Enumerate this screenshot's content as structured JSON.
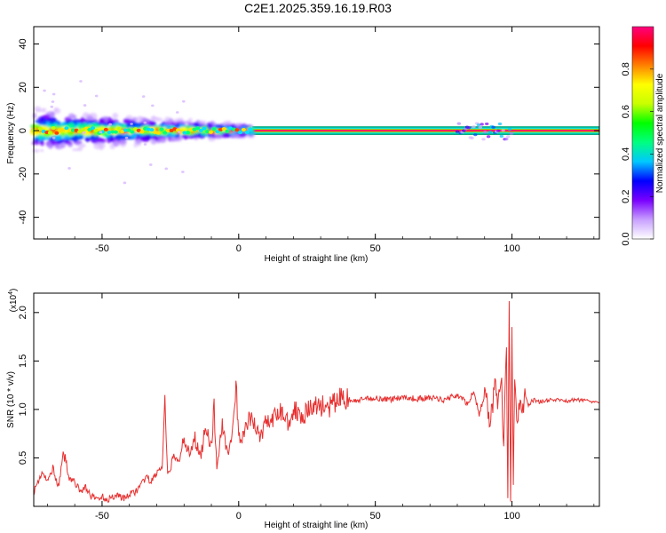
{
  "title": "C2E1.2025.359.16.19.R03",
  "chart_data": [
    {
      "type": "heatmap",
      "panel": "spectrogram",
      "xlabel": "Height of straight line (km)",
      "ylabel": "Frequency (Hz)",
      "xlim": [
        -75,
        132
      ],
      "ylim": [
        -50,
        48
      ],
      "xticks": [
        -50,
        0,
        50,
        100
      ],
      "yticks": [
        -40,
        -20,
        0,
        20,
        40
      ],
      "colorbar": {
        "label": "Normalized spectral amplitude",
        "range": [
          0,
          1
        ],
        "ticks": [
          "0.0",
          "0.2",
          "0.4",
          "0.6",
          "0.8"
        ],
        "tick_values": [
          0,
          0.2,
          0.4,
          0.6,
          0.8
        ],
        "colors": [
          "#ffffff",
          "#c8a0ff",
          "#7a00ff",
          "#0000ff",
          "#00c8ff",
          "#00ff80",
          "#00ff00",
          "#c8ff00",
          "#ffff00",
          "#ff8000",
          "#ff0000",
          "#ff0080"
        ]
      },
      "band": {
        "center_hz": 0,
        "scatter_range_km": [
          -75,
          5
        ],
        "scatter_spread_hz": [
          -12,
          12
        ],
        "stable_range_km": [
          5,
          132
        ],
        "stable_halfwidth_hz": 2,
        "disturbed_range_km": [
          80,
          100
        ]
      }
    },
    {
      "type": "line",
      "panel": "snr",
      "xlabel": "Height of straight line (km)",
      "ylabel": "SNR (10 * v/v)",
      "multiplier": "(x10",
      "multiplier_exp": "4",
      "multiplier_close": ")",
      "xlim": [
        -75,
        132
      ],
      "ylim": [
        0,
        2.2
      ],
      "xticks": [
        -50,
        0,
        50,
        100
      ],
      "yticks": [
        "0.5",
        "1.0",
        "1.5",
        "2.0"
      ],
      "ytick_values": [
        0.5,
        1.0,
        1.5,
        2.0
      ],
      "color": "#e83030",
      "x": [
        -75,
        -72,
        -70,
        -68,
        -66,
        -64,
        -62,
        -60,
        -58,
        -56,
        -54,
        -52,
        -50,
        -48,
        -46,
        -44,
        -42,
        -40,
        -38,
        -36,
        -34,
        -32,
        -30,
        -28,
        -27,
        -26,
        -24,
        -22,
        -20,
        -18,
        -16,
        -14,
        -12,
        -10,
        -9,
        -8,
        -6,
        -4,
        -2,
        -1,
        0,
        2,
        4,
        6,
        8,
        10,
        12,
        15,
        18,
        21,
        24,
        27,
        30,
        33,
        36,
        39,
        42,
        45,
        50,
        55,
        60,
        65,
        70,
        75,
        80,
        84,
        86,
        88,
        90,
        92,
        94,
        95,
        96,
        97,
        98,
        98.5,
        99,
        99.5,
        100,
        100.5,
        101,
        102,
        103,
        104,
        105,
        106,
        108,
        110,
        115,
        120,
        125,
        132
      ],
      "y": [
        0.15,
        0.35,
        0.25,
        0.4,
        0.2,
        0.55,
        0.3,
        0.25,
        0.15,
        0.2,
        0.1,
        0.08,
        0.1,
        0.07,
        0.1,
        0.12,
        0.08,
        0.12,
        0.15,
        0.2,
        0.3,
        0.25,
        0.35,
        0.4,
        1.05,
        0.3,
        0.5,
        0.45,
        0.75,
        0.5,
        0.7,
        0.5,
        0.85,
        0.6,
        1.0,
        0.4,
        0.85,
        0.55,
        0.8,
        1.25,
        0.7,
        0.75,
        0.9,
        0.85,
        0.7,
        0.9,
        0.85,
        1.0,
        0.88,
        1.0,
        0.95,
        1.02,
        1.05,
        1.0,
        1.1,
        1.12,
        1.08,
        1.1,
        1.12,
        1.1,
        1.13,
        1.11,
        1.12,
        1.1,
        1.15,
        1.05,
        1.2,
        0.95,
        1.15,
        0.9,
        1.25,
        1.0,
        1.4,
        0.6,
        1.7,
        0.05,
        2.2,
        0.02,
        1.8,
        0.2,
        1.35,
        0.85,
        1.2,
        0.95,
        1.15,
        1.05,
        1.1,
        1.08,
        1.1,
        1.09,
        1.1,
        1.08
      ]
    }
  ]
}
